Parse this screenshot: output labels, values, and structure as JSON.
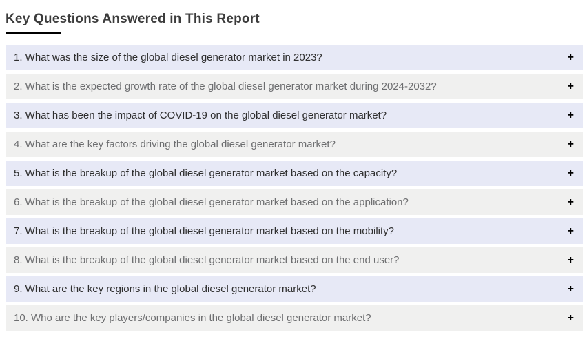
{
  "header": {
    "title": "Key Questions Answered in This Report"
  },
  "icons": {
    "expand": "+"
  },
  "colors": {
    "row_odd_bg": "#e7e9f6",
    "row_even_bg": "#f0f0ef",
    "row_odd_text": "#2f2f2f",
    "row_even_text": "#6d6e70",
    "title_text": "#3c3c3c",
    "underline": "#000000",
    "plus_icon": "#000000"
  },
  "faq": {
    "items": [
      {
        "text": "1. What was the size of the global diesel generator market in 2023?"
      },
      {
        "text": "2. What is the expected growth rate of the global diesel generator market during 2024-2032?"
      },
      {
        "text": "3. What has been the impact of COVID-19 on the global diesel generator market?"
      },
      {
        "text": "4. What are the key factors driving the global diesel generator market?"
      },
      {
        "text": "5. What is the breakup of the global diesel generator market based on the capacity?"
      },
      {
        "text": "6. What is the breakup of the global diesel generator market based on the application?"
      },
      {
        "text": "7. What is the breakup of the global diesel generator market based on the mobility?"
      },
      {
        "text": "8. What is the breakup of the global diesel generator market based on the end user?"
      },
      {
        "text": "9. What are the key regions in the global diesel generator market?"
      },
      {
        "text": "10. Who are the key players/companies in the global diesel generator market?"
      }
    ]
  }
}
